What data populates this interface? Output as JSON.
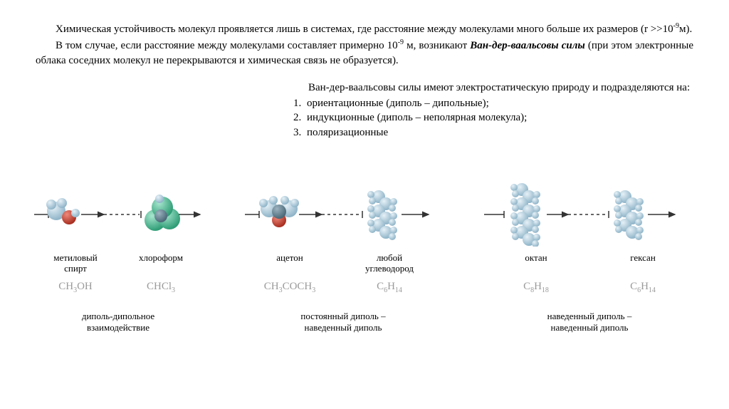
{
  "text": {
    "p1a": "Химическая устойчивость молекул проявляется лишь в системах, где расстояние между молекулами много больше их размеров (r >>10",
    "p1sup": "-9",
    "p1b": "м).",
    "p2a": "В том случае, если расстояние между молекулами составляет примерно 10",
    "p2sup": "-9",
    "p2b": " м, возникают ",
    "p2bi": "Ван-дер-ваальсовы силы",
    "p2c": " (при этом электронные облака соседних молекул не перекрываются и химическая связь не образуется).",
    "lead": "Ван-дер-ваальсовы силы имеют электростатическую природу и подразделяются на:",
    "li1": "ориентационные (диполь – дипольные);",
    "li2": "индукционные (диполь – неполярная молекула);",
    "li3": "поляризационные"
  },
  "molecules": {
    "methanol": {
      "name1": "метиловый",
      "name2": "спирт",
      "formula": "CH3OH"
    },
    "chloroform": {
      "name": "хлороформ",
      "formula": "CHCl3"
    },
    "acetone": {
      "name": "ацетон",
      "formula": "CH3COCH3"
    },
    "hydrocarbon": {
      "name1": "любой",
      "name2": "углеводород",
      "formula": "C6H14"
    },
    "octane": {
      "name": "октан",
      "formula": "C8H18"
    },
    "hexane": {
      "name": "гексан",
      "formula": "C6H14"
    }
  },
  "captions": {
    "c1": "диполь-дипольное\nвзаимодействие",
    "c2": "постоянный диполь –\nнаведенный диполь",
    "c3": "наведенный диполь –\nнаведенный диполь"
  },
  "style": {
    "colors": {
      "atom_light": "#b9d4e3",
      "atom_light_hi": "#e6f1f7",
      "atom_red": "#c0392b",
      "atom_red_hi": "#e88",
      "atom_green": "#3fae89",
      "atom_green_hi": "#9fe0c9",
      "atom_dark": "#5f7b8a",
      "axis": "#333333",
      "formula": "#9a9a9a",
      "text": "#000000",
      "background": "#ffffff"
    },
    "font_body_pt": 15,
    "font_label_pt": 13,
    "font_formula_pt": 15,
    "chain_atoms_long": 8,
    "chain_atoms_short": 6
  }
}
